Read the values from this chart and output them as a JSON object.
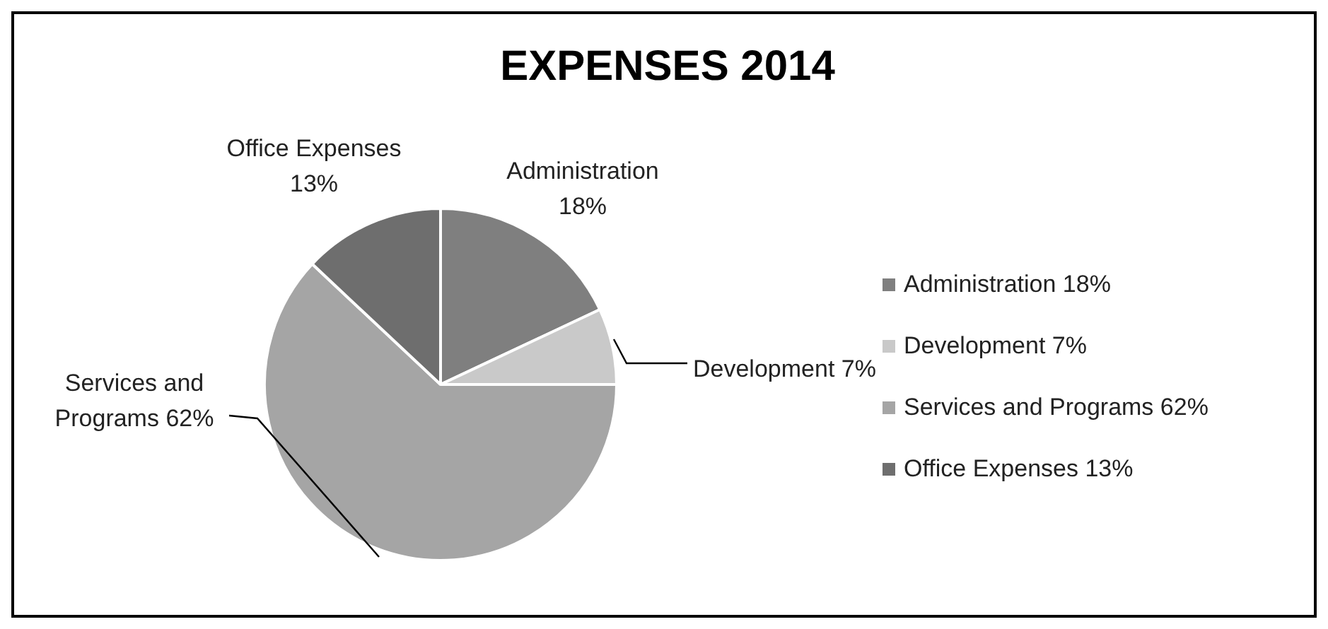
{
  "chart_data": {
    "type": "pie",
    "title": "EXPENSES 2014",
    "categories": [
      "Administration 18%",
      "Development 7%",
      "Services and Programs 62%",
      "Office Expenses 13%"
    ],
    "values": [
      18,
      7,
      62,
      13
    ],
    "colors": [
      "#7f7f7f",
      "#c9c9c9",
      "#a5a5a5",
      "#6e6e6e"
    ],
    "legend": "right"
  }
}
